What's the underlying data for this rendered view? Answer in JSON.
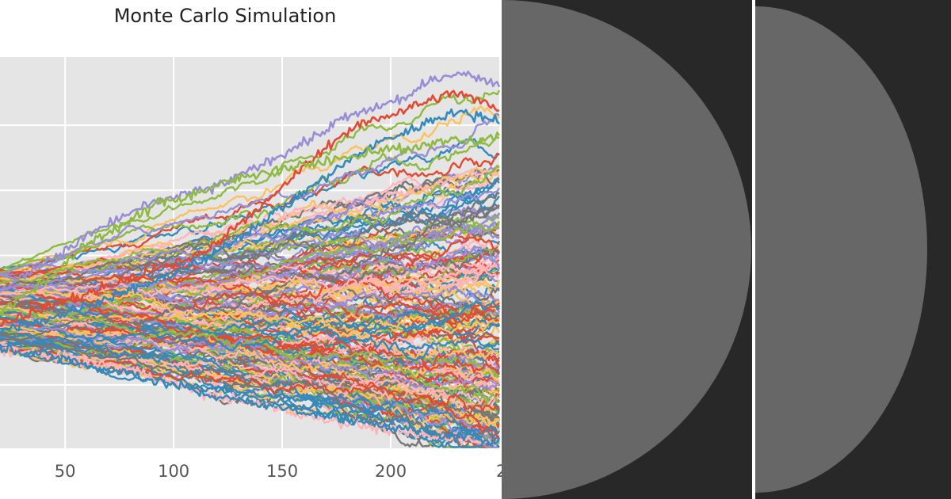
{
  "chart_data": {
    "type": "line",
    "title": "Monte Carlo Simulation",
    "xlabel": "",
    "ylabel": "",
    "xlim": [
      20,
      250
    ],
    "ylim": [
      0,
      100
    ],
    "xticks": [
      50,
      100,
      150,
      200
    ],
    "xtick_labels": [
      "50",
      "100",
      "150",
      "200"
    ],
    "clipped_xtick_label": "2",
    "ygrid": [
      0,
      16.4,
      33.0,
      49.4,
      66.0,
      82.6
    ],
    "grid": true,
    "style": "ggplot",
    "legend": "none",
    "n_series": 200,
    "start_range": [
      25,
      46
    ],
    "end_range": [
      2,
      95
    ],
    "highlighted_series": [
      {
        "color": "#988ED5",
        "values": [
          40,
          44,
          48,
          51,
          55,
          58,
          61,
          63,
          65,
          66,
          68,
          71,
          74,
          77,
          80,
          84,
          86,
          88,
          90,
          94,
          96,
          95,
          93
        ]
      },
      {
        "color": "#E24A33",
        "values": [
          32,
          34,
          36,
          38,
          40,
          42,
          44,
          46,
          48,
          50,
          55,
          60,
          64,
          70,
          75,
          80,
          83,
          85,
          87,
          89,
          91,
          89,
          87
        ]
      },
      {
        "color": "#348ABD",
        "values": [
          30,
          32,
          33,
          35,
          37,
          39,
          41,
          43,
          46,
          48,
          52,
          56,
          60,
          64,
          68,
          72,
          76,
          79,
          81,
          84,
          86,
          85,
          84
        ]
      },
      {
        "color": "#8EBA42",
        "values": [
          35,
          39,
          43,
          48,
          53,
          56,
          59,
          63,
          64,
          66,
          68,
          70,
          71,
          72,
          73,
          74,
          75,
          77,
          76,
          78,
          79,
          78,
          80
        ]
      },
      {
        "color": "#FFB5B8",
        "values": [
          25,
          25,
          24,
          23,
          22,
          21,
          20,
          18,
          16,
          14,
          13,
          12,
          11,
          9,
          8,
          7,
          6,
          5,
          4,
          3,
          3,
          2,
          2
        ]
      },
      {
        "color": "#348ABD",
        "values": [
          26,
          25,
          24,
          23,
          21,
          20,
          19,
          17,
          16,
          14,
          13,
          12,
          11,
          10,
          9,
          8,
          7,
          6,
          5,
          4,
          3,
          3,
          2
        ]
      }
    ],
    "palette": [
      "#E24A33",
      "#348ABD",
      "#988ED5",
      "#777777",
      "#FBC15E",
      "#8EBA42",
      "#FFB5B8"
    ],
    "colors": {
      "plot_bg": "#E5E5E5",
      "grid": "#FFFFFF",
      "tick_text": "#555555",
      "title_text": "#222222"
    }
  },
  "panels": {
    "bg": "#282828",
    "circle": "#676767",
    "divider": "#FFFFFF"
  }
}
